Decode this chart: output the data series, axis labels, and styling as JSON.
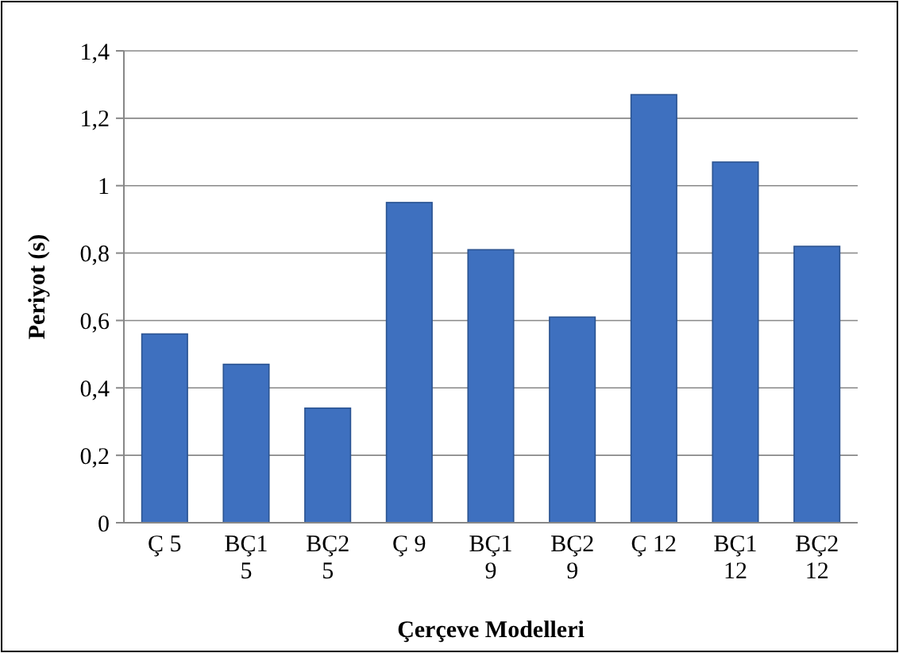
{
  "chart_data": {
    "type": "bar",
    "xlabel": "Çerçeve Modelleri",
    "ylabel": "Periyot (s)",
    "categories": [
      "Ç 5",
      "BÇ1 5",
      "BÇ2 5",
      "Ç 9",
      "BÇ1 9",
      "BÇ2 9",
      "Ç 12",
      "BÇ1 12",
      "BÇ2 12"
    ],
    "values": [
      0.56,
      0.47,
      0.34,
      0.95,
      0.81,
      0.61,
      1.27,
      1.07,
      0.82
    ],
    "color": "#3e70bf",
    "ylim": [
      0,
      1.4
    ],
    "yticks": [
      0,
      {
        "value": 0.2,
        "label": "0,2"
      },
      {
        "value": 0.4,
        "label": "0,4"
      },
      {
        "value": 0.6,
        "label": "0,6"
      },
      {
        "value": 0.8,
        "label": "0,8"
      },
      1,
      {
        "value": 1.2,
        "label": "1,2"
      },
      {
        "value": 1.4,
        "label": "1,4"
      }
    ],
    "grid": "y"
  }
}
